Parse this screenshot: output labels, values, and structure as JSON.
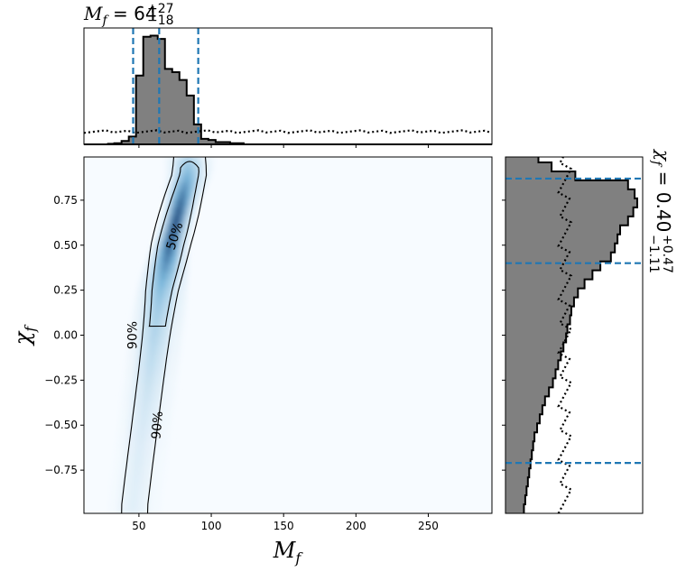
{
  "chart_data": {
    "type": "corner-posterior",
    "mass_title": {
      "symbol": "M",
      "sub": "f",
      "median": "64",
      "plus": "+27",
      "minus": "−18"
    },
    "spin_title": {
      "symbol": "χ",
      "sub": "f",
      "median": "0.40",
      "plus": "+0.47",
      "minus": "−1.11"
    },
    "xlabel": {
      "symbol": "M",
      "sub": "f"
    },
    "ylabel": {
      "symbol": "χ",
      "sub": "f"
    },
    "xlim": [
      12,
      294
    ],
    "ylim": [
      -0.99,
      0.99
    ],
    "xticks": [
      50,
      100,
      150,
      200,
      250
    ],
    "yticks": [
      -0.75,
      -0.5,
      -0.25,
      0.0,
      0.25,
      0.5,
      0.75
    ],
    "ytick_labels": [
      "−0.75",
      "−0.50",
      "−0.25",
      "0.00",
      "0.25",
      "0.50",
      "0.75"
    ],
    "colors": {
      "fill": "#808080",
      "line": "#000000",
      "quantile": "#1f77b4",
      "cmap_low": "#f7fbff",
      "cmap_high": "#08306b"
    },
    "mass_quantiles": [
      46,
      64,
      91
    ],
    "spin_quantiles": [
      -0.71,
      0.4,
      0.87
    ],
    "mass_hist": {
      "bin_edges": [
        28,
        33,
        38,
        43,
        48,
        53,
        58,
        63,
        68,
        73,
        78,
        83,
        88,
        93,
        98,
        103,
        108,
        113,
        118,
        123
      ],
      "density": [
        0.005,
        0.01,
        0.03,
        0.07,
        0.62,
        0.97,
        0.98,
        0.95,
        0.68,
        0.65,
        0.58,
        0.44,
        0.18,
        0.05,
        0.04,
        0.02,
        0.02,
        0.01,
        0.01
      ]
    },
    "mass_prior_level": 0.115,
    "spin_hist": {
      "bin_edges": [
        -0.99,
        -0.94,
        -0.89,
        -0.84,
        -0.79,
        -0.74,
        -0.69,
        -0.64,
        -0.59,
        -0.54,
        -0.49,
        -0.44,
        -0.39,
        -0.34,
        -0.29,
        -0.24,
        -0.19,
        -0.14,
        -0.09,
        -0.04,
        0.01,
        0.06,
        0.11,
        0.16,
        0.21,
        0.26,
        0.31,
        0.36,
        0.41,
        0.46,
        0.51,
        0.56,
        0.61,
        0.66,
        0.71,
        0.76,
        0.81,
        0.86,
        0.91,
        0.96,
        0.99
      ],
      "density": [
        0.14,
        0.15,
        0.16,
        0.17,
        0.18,
        0.19,
        0.2,
        0.21,
        0.22,
        0.24,
        0.26,
        0.28,
        0.3,
        0.33,
        0.36,
        0.38,
        0.4,
        0.42,
        0.44,
        0.46,
        0.47,
        0.49,
        0.5,
        0.52,
        0.55,
        0.6,
        0.66,
        0.72,
        0.8,
        0.83,
        0.85,
        0.87,
        0.93,
        0.97,
        1.0,
        0.98,
        0.93,
        0.53,
        0.35,
        0.25
      ]
    },
    "spin_prior_level": 0.45,
    "contours": [
      {
        "label": "50%",
        "level": 0.5
      },
      {
        "label": "90%",
        "level": 0.9
      }
    ],
    "density_ridge": {
      "spin": [
        -0.95,
        -0.75,
        -0.5,
        -0.25,
        0.0,
        0.25,
        0.5,
        0.75,
        0.9
      ],
      "mass": [
        47,
        50,
        54,
        58,
        62,
        66,
        72,
        80,
        85
      ]
    }
  }
}
